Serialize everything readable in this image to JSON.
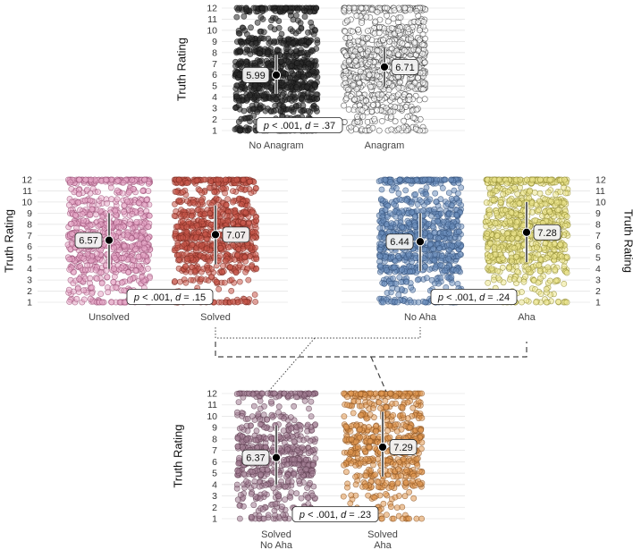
{
  "chart_data": [
    {
      "type": "scatter",
      "subtype": "jitter-strip",
      "ylabel": "Truth Rating",
      "ylabel_side": "left",
      "yticks": [
        1,
        2,
        3,
        4,
        5,
        6,
        7,
        8,
        9,
        10,
        11,
        12
      ],
      "ylim": [
        1,
        12
      ],
      "categories": [
        "No Anagram",
        "Anagram"
      ],
      "groups": [
        {
          "label": "No Anagram",
          "mean": 5.99,
          "mean_label": "5.99",
          "ci": [
            4.3,
            7.8
          ],
          "fill": "#2b2b2b",
          "stroke": "#111111"
        },
        {
          "label": "Anagram",
          "mean": 6.71,
          "mean_label": "6.71",
          "ci": [
            5.0,
            8.4
          ],
          "fill": "#ffffff",
          "stroke": "#333333"
        }
      ],
      "stat_label": {
        "p": "p",
        "p_rest": " < .001, ",
        "d": "d",
        "d_rest": " = .37"
      },
      "grid": true
    },
    {
      "type": "scatter",
      "subtype": "jitter-strip",
      "ylabel": "Truth Rating",
      "ylabel_side": "left",
      "yticks": [
        1,
        2,
        3,
        4,
        5,
        6,
        7,
        8,
        9,
        10,
        11,
        12
      ],
      "ylim": [
        1,
        12
      ],
      "categories": [
        "Unsolved",
        "Solved"
      ],
      "groups": [
        {
          "label": "Unsolved",
          "mean": 6.57,
          "mean_label": "6.57",
          "ci": [
            4.0,
            9.0
          ],
          "fill": "#e8a9c8",
          "stroke": "#9a4f75"
        },
        {
          "label": "Solved",
          "mean": 7.07,
          "mean_label": "7.07",
          "ci": [
            4.4,
            9.7
          ],
          "fill": "#c9574a",
          "stroke": "#7c2b22"
        }
      ],
      "stat_label": {
        "p": "p",
        "p_rest": " < .001, ",
        "d": "d",
        "d_rest": " = .15"
      },
      "grid": true
    },
    {
      "type": "scatter",
      "subtype": "jitter-strip",
      "ylabel": "Truth Rating",
      "ylabel_side": "right",
      "yticks": [
        1,
        2,
        3,
        4,
        5,
        6,
        7,
        8,
        9,
        10,
        11,
        12
      ],
      "ylim": [
        1,
        12
      ],
      "categories": [
        "No Aha",
        "Aha"
      ],
      "groups": [
        {
          "label": "No Aha",
          "mean": 6.44,
          "mean_label": "6.44",
          "ci": [
            3.8,
            9.0
          ],
          "fill": "#6d90bd",
          "stroke": "#33507a"
        },
        {
          "label": "Aha",
          "mean": 7.28,
          "mean_label": "7.28",
          "ci": [
            4.6,
            10.0
          ],
          "fill": "#ece68e",
          "stroke": "#8f8a2f"
        }
      ],
      "stat_label": {
        "p": "p",
        "p_rest": " < .001, ",
        "d": "d",
        "d_rest": " = .24"
      },
      "grid": true
    },
    {
      "type": "scatter",
      "subtype": "jitter-strip",
      "ylabel": "Truth Rating",
      "ylabel_side": "left",
      "yticks": [
        1,
        2,
        3,
        4,
        5,
        6,
        7,
        8,
        9,
        10,
        11,
        12
      ],
      "ylim": [
        1,
        12
      ],
      "categories": [
        "Solved\nNo Aha",
        "Solved\nAha"
      ],
      "groups": [
        {
          "label_lines": [
            "Solved",
            "No Aha"
          ],
          "mean": 6.37,
          "mean_label": "6.37",
          "ci": [
            4.0,
            9.2
          ],
          "fill": "#a37e93",
          "stroke": "#5d3e50"
        },
        {
          "label_lines": [
            "Solved",
            "Aha"
          ],
          "mean": 7.29,
          "mean_label": "7.29",
          "ci": [
            4.7,
            10.4
          ],
          "fill": "#e09850",
          "stroke": "#8a5220"
        }
      ],
      "stat_label": {
        "p": "p",
        "p_rest": " < .001, ",
        "d": "d",
        "d_rest": " = .23"
      },
      "grid": true
    }
  ],
  "connectors": [
    {
      "style": "dotted",
      "from": "Solved",
      "to": "No Aha"
    },
    {
      "style": "dashed",
      "from": "Solved",
      "to": "Aha"
    }
  ]
}
